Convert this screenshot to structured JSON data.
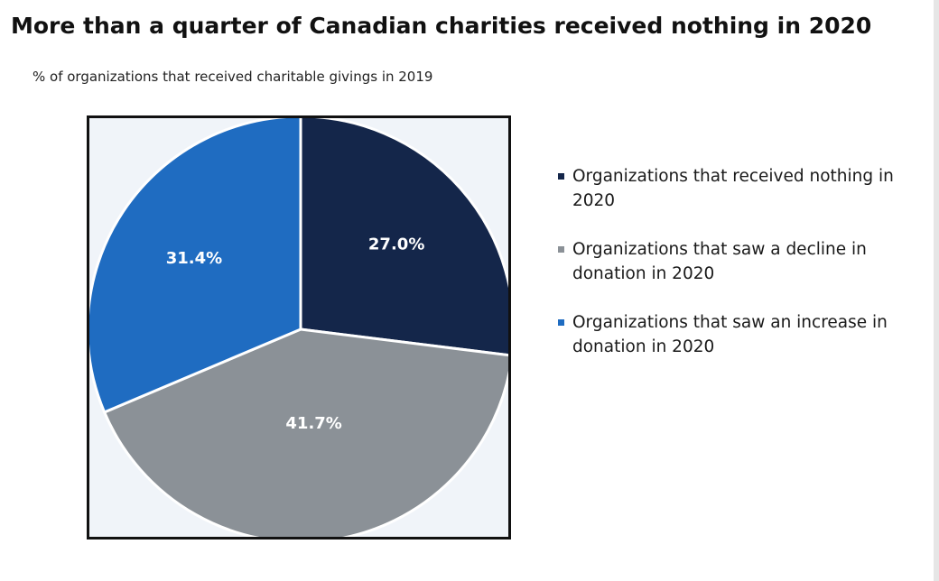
{
  "chart_data": {
    "type": "pie",
    "title": "More than a quarter of Canadian charities received nothing in 2020",
    "subtitle": "% of organizations that received charitable givings in 2019",
    "categories": [
      "Organizations that received nothing in 2020",
      "Organizations that saw a decline in donation in 2020",
      "Organizations that saw an increase in donation in 2020"
    ],
    "values": [
      27.0,
      41.7,
      31.4
    ],
    "labels": [
      "27.0%",
      "41.7%",
      "31.4%"
    ],
    "colors": [
      "#14264a",
      "#8b9197",
      "#1f6cc1"
    ],
    "legend_position": "right"
  }
}
